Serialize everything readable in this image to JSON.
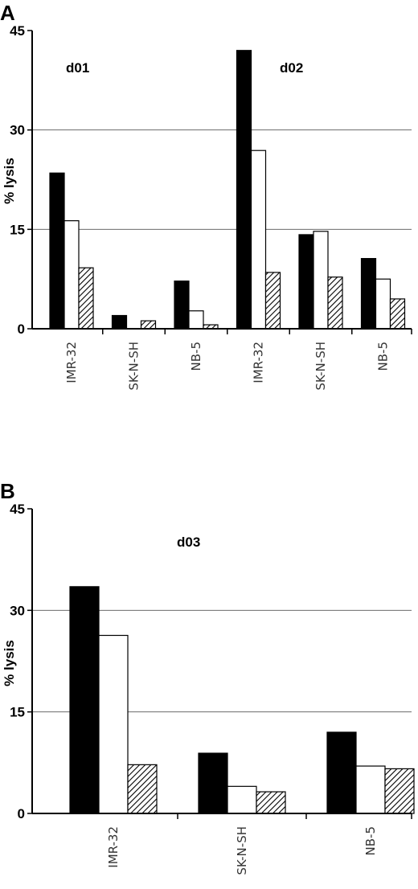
{
  "chart_data": [
    {
      "type": "bar",
      "panel": "A",
      "ylabel": "% lysis",
      "ylim": [
        0,
        45
      ],
      "yticks": [
        0,
        15,
        30,
        45
      ],
      "grid": true,
      "annotations": [
        "d01",
        "d02"
      ],
      "categories": [
        "IMR-32",
        "SK-N-SH",
        "NB-5",
        "IMR-32",
        "SK-N-SH",
        "NB-5"
      ],
      "series": [
        {
          "fill": "solid",
          "values": [
            23.5,
            2.0,
            7.2,
            42.0,
            14.2,
            10.6
          ]
        },
        {
          "fill": "open",
          "values": [
            16.3,
            0.0,
            2.7,
            26.9,
            14.7,
            7.5
          ]
        },
        {
          "fill": "hatched",
          "values": [
            9.2,
            1.2,
            0.6,
            8.5,
            7.8,
            4.5
          ]
        }
      ]
    },
    {
      "type": "bar",
      "panel": "B",
      "ylabel": "% lysis",
      "ylim": [
        0,
        45
      ],
      "yticks": [
        0,
        15,
        30,
        45
      ],
      "grid": true,
      "annotations": [
        "d03"
      ],
      "categories": [
        "IMR-32",
        "SK-N-SH",
        "NB-5"
      ],
      "series": [
        {
          "fill": "solid",
          "values": [
            33.5,
            8.9,
            12.0
          ]
        },
        {
          "fill": "open",
          "values": [
            26.3,
            4.0,
            7.0
          ]
        },
        {
          "fill": "hatched",
          "values": [
            7.2,
            3.2,
            6.6
          ]
        }
      ]
    }
  ]
}
